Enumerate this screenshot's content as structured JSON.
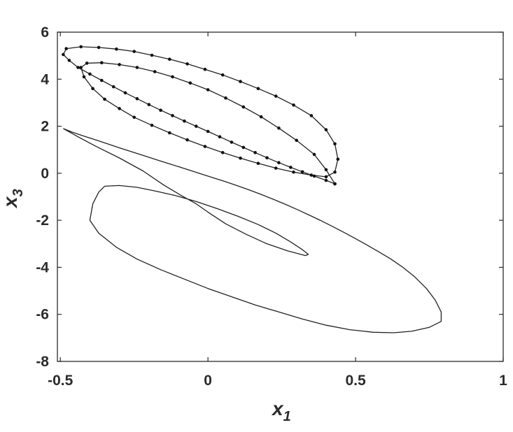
{
  "chart_data": {
    "type": "line",
    "title": "",
    "xlabel": "x",
    "xlabel_sub": "1",
    "ylabel": "x",
    "ylabel_sub": "3",
    "xlim": [
      -0.51,
      1
    ],
    "ylim": [
      -8,
      6
    ],
    "x_ticks": [
      -0.5,
      0,
      0.5,
      1
    ],
    "x_tick_labels": [
      "-0.5",
      "0",
      "0.5",
      "1"
    ],
    "y_ticks": [
      -8,
      -6,
      -4,
      -2,
      0,
      2,
      4,
      6
    ],
    "y_tick_labels": [
      "-8",
      "-6",
      "-4",
      "-2",
      "0",
      "2",
      "4",
      "6"
    ],
    "grid": false,
    "series": [
      {
        "style": "line",
        "x": [
          -0.49,
          -0.46,
          -0.42,
          -0.38,
          -0.34,
          -0.3,
          -0.26,
          -0.22,
          -0.18,
          -0.14,
          -0.1,
          -0.06,
          -0.02,
          0.02,
          0.06,
          0.1,
          0.14,
          0.18,
          0.22,
          0.26,
          0.3,
          0.34,
          0.38,
          0.42,
          0.46,
          0.5,
          0.54,
          0.58,
          0.62,
          0.66,
          0.7,
          0.74,
          0.77,
          0.79,
          0.79,
          0.75,
          0.69,
          0.63,
          0.56,
          0.48,
          0.4,
          0.32,
          0.24,
          0.16,
          0.08,
          0,
          -0.08,
          -0.16,
          -0.24,
          -0.31,
          -0.37,
          -0.4,
          -0.39,
          -0.37,
          -0.35,
          -0.3,
          -0.24,
          -0.18,
          -0.11,
          -0.04,
          0.03,
          0.1,
          0.17,
          0.23,
          0.28,
          0.32,
          0.34,
          0.33,
          0.27,
          0.2,
          0.13,
          0.06,
          0,
          -0.04,
          -0.09,
          -0.15,
          -0.22,
          -0.3,
          -0.38,
          -0.44,
          -0.49
        ],
        "y": [
          1.9,
          1.75,
          1.58,
          1.42,
          1.25,
          1.08,
          0.92,
          0.76,
          0.6,
          0.44,
          0.28,
          0.12,
          -0.04,
          -0.2,
          -0.36,
          -0.53,
          -0.71,
          -0.9,
          -1.1,
          -1.31,
          -1.53,
          -1.76,
          -2.0,
          -2.25,
          -2.51,
          -2.78,
          -3.06,
          -3.35,
          -3.65,
          -4.0,
          -4.4,
          -4.9,
          -5.4,
          -5.9,
          -6.3,
          -6.55,
          -6.72,
          -6.78,
          -6.76,
          -6.65,
          -6.46,
          -6.2,
          -5.9,
          -5.6,
          -5.25,
          -4.9,
          -4.5,
          -4.1,
          -3.65,
          -3.15,
          -2.55,
          -2.0,
          -1.3,
          -0.8,
          -0.55,
          -0.52,
          -0.6,
          -0.75,
          -0.95,
          -1.2,
          -1.5,
          -1.82,
          -2.18,
          -2.55,
          -2.92,
          -3.25,
          -3.45,
          -3.5,
          -3.3,
          -3.0,
          -2.6,
          -2.15,
          -1.65,
          -1.3,
          -0.95,
          -0.5,
          0.1,
          0.65,
          1.15,
          1.55,
          1.9
        ]
      },
      {
        "style": "line+markers",
        "x": [
          0.43,
          0.4,
          0.36,
          0.32,
          0.28,
          0.24,
          0.2,
          0.16,
          0.12,
          0.08,
          0.04,
          0,
          -0.04,
          -0.08,
          -0.12,
          -0.16,
          -0.2,
          -0.24,
          -0.28,
          -0.32,
          -0.36,
          -0.4,
          -0.44,
          -0.47,
          -0.49,
          -0.48,
          -0.43,
          -0.37,
          -0.31,
          -0.25,
          -0.19,
          -0.13,
          -0.07,
          -0.01,
          0.05,
          0.11,
          0.17,
          0.23,
          0.29,
          0.35,
          0.4,
          0.43,
          0.44,
          0.43,
          0.4,
          0.35,
          0.29,
          0.23,
          0.17,
          0.11,
          0.05,
          -0.01,
          -0.07,
          -0.13,
          -0.19,
          -0.25,
          -0.3,
          -0.35,
          -0.39,
          -0.42,
          -0.43,
          -0.41,
          -0.36,
          -0.3,
          -0.24,
          -0.18,
          -0.12,
          -0.06,
          0,
          0.06,
          0.12,
          0.18,
          0.24,
          0.3,
          0.36,
          0.4,
          0.43
        ],
        "y": [
          -0.45,
          -0.3,
          -0.12,
          0.06,
          0.25,
          0.45,
          0.66,
          0.88,
          1.1,
          1.32,
          1.55,
          1.78,
          2.0,
          2.22,
          2.45,
          2.68,
          2.92,
          3.17,
          3.42,
          3.68,
          3.95,
          4.22,
          4.5,
          4.8,
          5.05,
          5.3,
          5.38,
          5.35,
          5.28,
          5.18,
          5.02,
          4.85,
          4.65,
          4.42,
          4.18,
          3.9,
          3.6,
          3.28,
          2.9,
          2.45,
          1.85,
          1.25,
          0.6,
          0.05,
          -0.15,
          -0.08,
          0.05,
          0.22,
          0.42,
          0.64,
          0.88,
          1.14,
          1.42,
          1.72,
          2.04,
          2.38,
          2.75,
          3.15,
          3.6,
          4.1,
          4.5,
          4.68,
          4.7,
          4.62,
          4.5,
          4.32,
          4.1,
          3.84,
          3.55,
          3.2,
          2.82,
          2.4,
          1.92,
          1.4,
          0.8,
          0.15,
          -0.45
        ]
      }
    ]
  }
}
